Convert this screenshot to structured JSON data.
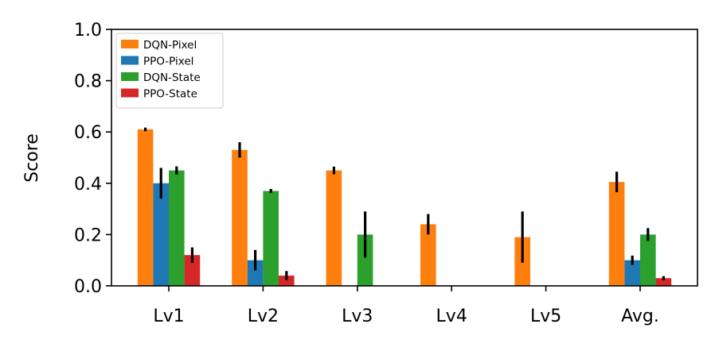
{
  "chart_data": {
    "type": "bar",
    "title": "",
    "xlabel": "",
    "ylabel": "Score",
    "ylim": [
      0,
      1.0
    ],
    "yticks": [
      "0.0",
      "0.2",
      "0.4",
      "0.6",
      "0.8",
      "1.0"
    ],
    "categories": [
      "Lv1",
      "Lv2",
      "Lv3",
      "Lv4",
      "Lv5",
      "Avg."
    ],
    "legend_position": "top-left",
    "grid": false,
    "series": [
      {
        "name": "DQN-Pixel",
        "color": "#ff7f0e",
        "values": [
          0.61,
          0.53,
          0.45,
          0.24,
          0.19,
          0.405
        ],
        "errors": [
          0.007,
          0.03,
          0.015,
          0.04,
          0.1,
          0.04
        ]
      },
      {
        "name": "PPO-Pixel",
        "color": "#1f77b4",
        "values": [
          0.4,
          0.1,
          0.0,
          0.0,
          0.0,
          0.1
        ],
        "errors": [
          0.06,
          0.04,
          0.0,
          0.0,
          0.0,
          0.018
        ]
      },
      {
        "name": "DQN-State",
        "color": "#2ca02c",
        "values": [
          0.45,
          0.37,
          0.2,
          0.0,
          0.0,
          0.2
        ],
        "errors": [
          0.016,
          0.008,
          0.09,
          0.0,
          0.0,
          0.025
        ]
      },
      {
        "name": "PPO-State",
        "color": "#d62728",
        "values": [
          0.12,
          0.04,
          0.0,
          0.0,
          0.0,
          0.03
        ],
        "errors": [
          0.03,
          0.018,
          0.0,
          0.0,
          0.0,
          0.008
        ]
      }
    ]
  }
}
